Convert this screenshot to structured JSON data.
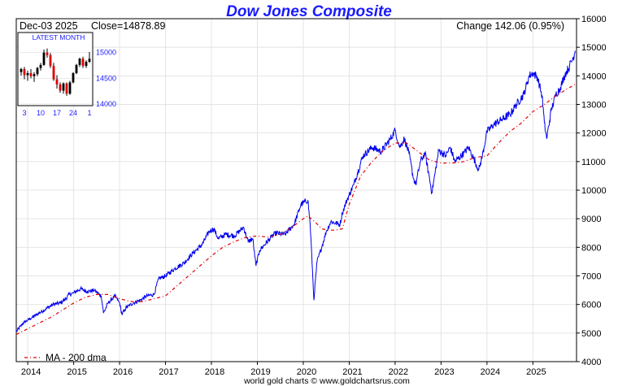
{
  "chart_data": {
    "type": "line",
    "title": "Dow Jones Composite",
    "header_left": "Dec-03  2025",
    "header_close": "Close=14878.89",
    "header_change": "Change 142.06 (0.95%)",
    "credit": "world gold charts © www.goldchartsrus.com",
    "ylim": [
      4000,
      16000
    ],
    "yticks": [
      4000,
      5000,
      6000,
      7000,
      8000,
      9000,
      10000,
      11000,
      12000,
      13000,
      14000,
      15000,
      16000
    ],
    "xlim": [
      2013.75,
      2025.95
    ],
    "xticks": [
      "2014",
      "2015",
      "2016",
      "2017",
      "2018",
      "2019",
      "2020",
      "2021",
      "2022",
      "2023",
      "2024",
      "2025"
    ],
    "grid": true,
    "legend_position": "bottom-left",
    "colors": {
      "price": "#0000ee",
      "ma": "#dd0000",
      "title": "#1a1aff"
    },
    "series": [
      {
        "name": "",
        "x": [
          2013.75,
          2013.9,
          2014.0,
          2014.1,
          2014.25,
          2014.4,
          2014.55,
          2014.7,
          2014.8,
          2014.9,
          2015.0,
          2015.15,
          2015.3,
          2015.45,
          2015.6,
          2015.65,
          2015.75,
          2015.9,
          2016.0,
          2016.05,
          2016.15,
          2016.3,
          2016.45,
          2016.6,
          2016.75,
          2016.85,
          2017.0,
          2017.2,
          2017.4,
          2017.6,
          2017.8,
          2017.95,
          2018.05,
          2018.15,
          2018.3,
          2018.5,
          2018.7,
          2018.8,
          2018.9,
          2018.97,
          2019.05,
          2019.3,
          2019.4,
          2019.6,
          2019.8,
          2019.95,
          2020.1,
          2020.15,
          2020.2,
          2020.23,
          2020.3,
          2020.4,
          2020.5,
          2020.6,
          2020.7,
          2020.8,
          2020.85,
          2020.95,
          2021.1,
          2021.3,
          2021.5,
          2021.7,
          2021.9,
          2022.0,
          2022.1,
          2022.2,
          2022.3,
          2022.4,
          2022.45,
          2022.55,
          2022.65,
          2022.75,
          2022.8,
          2022.95,
          2023.1,
          2023.2,
          2023.3,
          2023.5,
          2023.6,
          2023.7,
          2023.82,
          2023.9,
          2024.0,
          2024.15,
          2024.3,
          2024.5,
          2024.6,
          2024.8,
          2024.92,
          2025.0,
          2025.1,
          2025.2,
          2025.25,
          2025.3,
          2025.4,
          2025.5,
          2025.6,
          2025.7,
          2025.8,
          2025.88,
          2025.92
        ],
        "values": [
          5050,
          5350,
          5450,
          5550,
          5700,
          5850,
          6000,
          6050,
          6150,
          6350,
          6400,
          6550,
          6450,
          6500,
          6300,
          5700,
          6050,
          6300,
          6050,
          5650,
          5900,
          6050,
          6150,
          6300,
          6350,
          6900,
          7000,
          7250,
          7450,
          7800,
          8100,
          8550,
          8650,
          8300,
          8450,
          8400,
          8700,
          8200,
          8300,
          7350,
          7900,
          8350,
          8500,
          8450,
          8800,
          9500,
          9650,
          8800,
          7200,
          6150,
          7500,
          8000,
          8550,
          8900,
          8850,
          8800,
          9200,
          9650,
          10200,
          11200,
          11500,
          11350,
          11800,
          12100,
          11500,
          11800,
          11300,
          10400,
          10200,
          11000,
          11300,
          10400,
          9900,
          11400,
          11200,
          11500,
          11000,
          11300,
          11500,
          11150,
          10700,
          11200,
          12050,
          12300,
          12450,
          12650,
          12900,
          13350,
          14000,
          14100,
          13950,
          13300,
          12350,
          11800,
          12800,
          13350,
          13600,
          14050,
          14350,
          14650,
          14880
        ]
      },
      {
        "name": "MA - 200 dma",
        "x": [
          2013.75,
          2014.0,
          2014.25,
          2014.5,
          2014.75,
          2015.0,
          2015.25,
          2015.5,
          2015.75,
          2016.0,
          2016.25,
          2016.5,
          2016.75,
          2017.0,
          2017.25,
          2017.5,
          2017.75,
          2018.0,
          2018.25,
          2018.5,
          2018.75,
          2019.0,
          2019.25,
          2019.5,
          2019.75,
          2020.0,
          2020.1,
          2020.25,
          2020.4,
          2020.55,
          2020.7,
          2020.85,
          2021.0,
          2021.25,
          2021.5,
          2021.75,
          2022.0,
          2022.25,
          2022.5,
          2022.75,
          2023.0,
          2023.25,
          2023.5,
          2023.75,
          2024.0,
          2024.25,
          2024.5,
          2024.75,
          2025.0,
          2025.25,
          2025.5,
          2025.75,
          2025.92
        ],
        "values": [
          4950,
          5150,
          5350,
          5550,
          5800,
          6050,
          6250,
          6350,
          6350,
          6200,
          6100,
          6100,
          6200,
          6300,
          6650,
          7000,
          7350,
          7700,
          8000,
          8200,
          8350,
          8400,
          8350,
          8450,
          8700,
          9000,
          9100,
          8900,
          8650,
          8600,
          8600,
          8650,
          9500,
          10500,
          11000,
          11400,
          11650,
          11650,
          11350,
          11050,
          10950,
          10950,
          11000,
          11150,
          11200,
          11650,
          12050,
          12350,
          12750,
          13000,
          13300,
          13550,
          13700
        ]
      }
    ],
    "inset": {
      "title": "LATEST MONTH",
      "type": "candlestick",
      "ylim": [
        14000,
        15200
      ],
      "yticks": [
        "15000",
        "14500",
        "14000"
      ],
      "xticks": [
        "3",
        "10",
        "17",
        "24",
        "1"
      ],
      "candles": [
        [
          14620,
          14700,
          14550,
          14680
        ],
        [
          14680,
          14720,
          14480,
          14560
        ],
        [
          14560,
          14650,
          14450,
          14600
        ],
        [
          14600,
          14680,
          14500,
          14540
        ],
        [
          14540,
          14620,
          14430,
          14580
        ],
        [
          14580,
          14720,
          14540,
          14700
        ],
        [
          14700,
          14800,
          14650,
          14760
        ],
        [
          14760,
          15060,
          14740,
          15000
        ],
        [
          15000,
          15080,
          14900,
          14950
        ],
        [
          14950,
          14990,
          14700,
          14740
        ],
        [
          14740,
          14800,
          14450,
          14480
        ],
        [
          14480,
          14560,
          14300,
          14380
        ],
        [
          14380,
          14420,
          14220,
          14260
        ],
        [
          14260,
          14420,
          14200,
          14400
        ],
        [
          14400,
          14420,
          14160,
          14200
        ],
        [
          14200,
          14450,
          14180,
          14420
        ],
        [
          14420,
          14620,
          14400,
          14600
        ],
        [
          14600,
          14780,
          14580,
          14760
        ],
        [
          14760,
          14900,
          14720,
          14880
        ],
        [
          14880,
          14920,
          14700,
          14740
        ],
        [
          14740,
          14850,
          14700,
          14820
        ],
        [
          14820,
          15010,
          14800,
          14880
        ]
      ]
    }
  }
}
